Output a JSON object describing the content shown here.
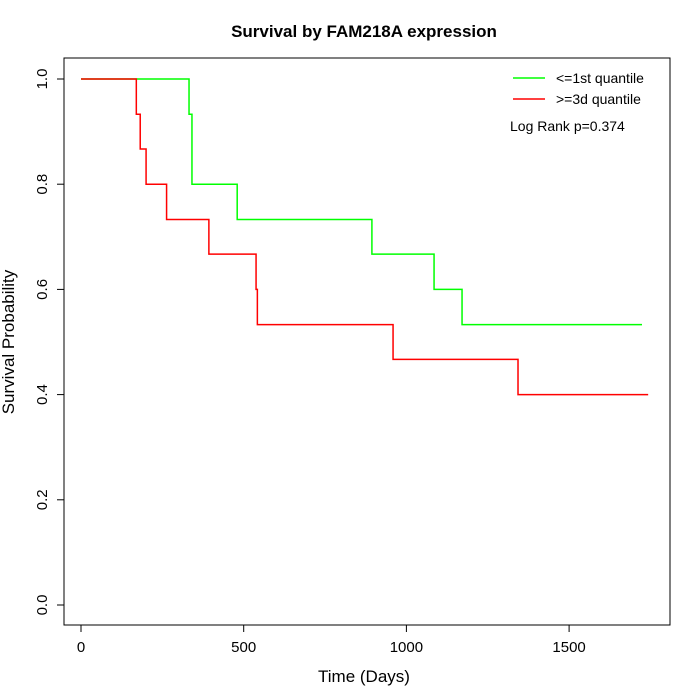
{
  "chart_data": {
    "type": "line",
    "title": "Survival by FAM218A expression",
    "xlabel": "Time (Days)",
    "ylabel": "Survival Probability",
    "xlim": [
      -50,
      1800
    ],
    "ylim": [
      -0.04,
      1.04
    ],
    "xticks": [
      0,
      500,
      1000,
      1500
    ],
    "yticks": [
      0.0,
      0.2,
      0.4,
      0.6,
      0.8,
      1.0
    ],
    "ytick_labels": [
      "0.0",
      "0.2",
      "0.4",
      "0.6",
      "0.8",
      "1.0"
    ],
    "grid": false,
    "legend_position": "top-right",
    "annotation": "Log Rank p=0.374",
    "series": [
      {
        "name": "<=1st quantile",
        "color": "#00ff00",
        "steps": [
          [
            0,
            1.0
          ],
          [
            332,
            0.933
          ],
          [
            341,
            0.8
          ],
          [
            480,
            0.733
          ],
          [
            894,
            0.667
          ],
          [
            1085,
            0.6
          ],
          [
            1171,
            0.533
          ]
        ],
        "end": 1724
      },
      {
        "name": ">=3d quantile",
        "color": "#ff0000",
        "steps": [
          [
            0,
            1.0
          ],
          [
            170,
            0.933
          ],
          [
            182,
            0.867
          ],
          [
            200,
            0.8
          ],
          [
            263,
            0.733
          ],
          [
            393,
            0.667
          ],
          [
            538,
            0.6
          ],
          [
            542,
            0.533
          ],
          [
            959,
            0.467
          ],
          [
            1343,
            0.4
          ]
        ],
        "end": 1743
      }
    ]
  }
}
